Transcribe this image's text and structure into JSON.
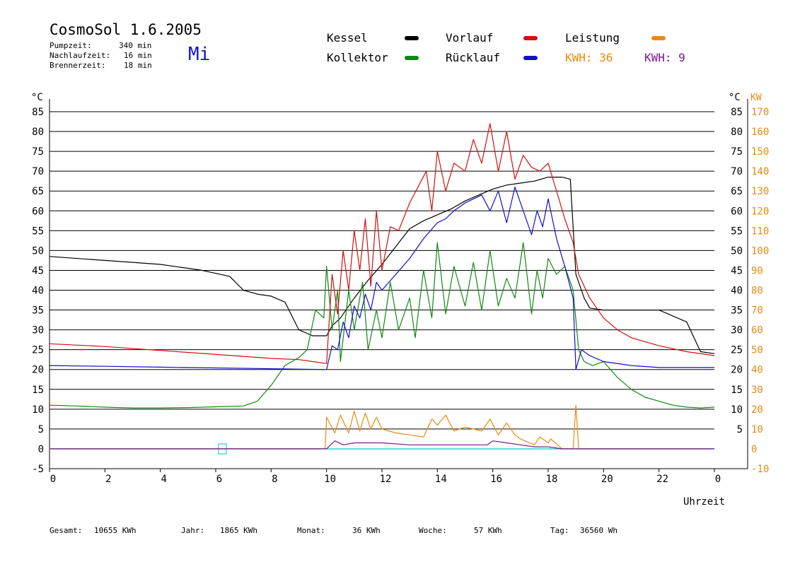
{
  "header": {
    "title": "CosmoSol 1.6.2005",
    "day": "Mi",
    "times": [
      {
        "label": "Pumpzeit:",
        "value": "340 min"
      },
      {
        "label": "Nachlaufzeit:",
        "value": "16 min"
      },
      {
        "label": "Brennerzeit:",
        "value": "18 min"
      }
    ]
  },
  "legend": {
    "kessel": "Kessel",
    "kollektor": "Kollektor",
    "vorlauf": "Vorlauf",
    "ruecklauf": "Rücklauf",
    "leistung": "Leistung",
    "kwh1": "KWH: 36",
    "kwh2": "KWH: 9"
  },
  "colors": {
    "kessel": "#000000",
    "kollektor": "#118811",
    "vorlauf": "#d01010",
    "ruecklauf": "#1010c8",
    "leistung": "#e88a10",
    "leistung2": "#7a1a8a",
    "zero": "#30d0d0"
  },
  "footer": [
    {
      "label": "Gesamt:",
      "value": "10655 KWh"
    },
    {
      "label": "Jahr:",
      "value": "1865 KWh"
    },
    {
      "label": "Monat:",
      "value": "36 KWh"
    },
    {
      "label": "Woche:",
      "value": "57 KWh"
    },
    {
      "label": "Tag:",
      "value": "36560 Wh"
    }
  ],
  "chart_data": {
    "type": "line",
    "title": "CosmoSol 1.6.2005",
    "xlabel": "Uhrzeit",
    "ylabel_left": "°C",
    "ylabel_right": "°C",
    "ylabel_right2": "KW",
    "xlim": [
      0,
      24
    ],
    "ylim": [
      -5,
      85
    ],
    "ylim_kw": [
      -10,
      170
    ],
    "grid": true,
    "x_ticks": [
      "0",
      "2",
      "4",
      "6",
      "8",
      "10",
      "12",
      "14",
      "16",
      "18",
      "20",
      "22",
      "0"
    ],
    "y_ticks_left": [
      "85",
      "80",
      "75",
      "70",
      "65",
      "60",
      "55",
      "50",
      "45",
      "40",
      "35",
      "30",
      "25",
      "20",
      "15",
      "10",
      "5",
      "0",
      "-5"
    ],
    "y_ticks_right": [
      "85",
      "80",
      "75",
      "70",
      "65",
      "60",
      "55",
      "50",
      "45",
      "40",
      "35",
      "30",
      "25",
      "20",
      "15",
      "10",
      "5"
    ],
    "y_ticks_kw": [
      "170",
      "160",
      "150",
      "140",
      "130",
      "120",
      "110",
      "100",
      "90",
      "80",
      "70",
      "60",
      "50",
      "40",
      "30",
      "20",
      "10",
      "0",
      "-10"
    ],
    "series": [
      {
        "name": "Kessel",
        "x": [
          0,
          2,
          4,
          5.5,
          6.5,
          7,
          7.5,
          8,
          8.5,
          9,
          9.5,
          10,
          10.2,
          10.5,
          11,
          11.5,
          12,
          12.5,
          13,
          13.5,
          14,
          14.5,
          15,
          15.5,
          16,
          16.5,
          17,
          17.5,
          18,
          18.5,
          18.8,
          19,
          19.3,
          19.5,
          20,
          21,
          22,
          23,
          23.5,
          24
        ],
        "y": [
          48.5,
          47.5,
          46.5,
          45,
          43.5,
          40,
          39,
          38.5,
          37,
          30,
          28.5,
          28.5,
          31,
          33,
          38,
          42.5,
          46.5,
          51,
          55.5,
          57.5,
          59,
          60.5,
          62.5,
          64,
          65.5,
          66.5,
          67,
          67.5,
          68.5,
          68.5,
          68,
          44,
          38,
          35.5,
          35,
          35,
          35,
          32,
          24.5,
          24
        ]
      },
      {
        "name": "Kollektor",
        "x": [
          0,
          1,
          2,
          3,
          4,
          5,
          6,
          7,
          7.5,
          8,
          8.5,
          9,
          9.3,
          9.6,
          9.9,
          10,
          10.2,
          10.4,
          10.5,
          10.8,
          11,
          11.3,
          11.5,
          11.8,
          12,
          12.3,
          12.6,
          13,
          13.2,
          13.5,
          13.8,
          14,
          14.3,
          14.6,
          15,
          15.3,
          15.6,
          15.9,
          16.2,
          16.5,
          16.8,
          17.1,
          17.4,
          17.6,
          17.8,
          18,
          18.3,
          18.6,
          18.9,
          19.1,
          19.3,
          19.6,
          20,
          20.5,
          21,
          21.5,
          22,
          22.5,
          23,
          23.5,
          24
        ],
        "y": [
          11,
          10.8,
          10.5,
          10.3,
          10.3,
          10.4,
          10.6,
          10.8,
          12,
          16,
          21,
          23,
          25,
          35,
          33,
          46,
          30,
          40,
          22,
          40,
          30,
          42,
          25,
          35,
          28,
          42,
          30,
          38,
          28,
          45,
          33,
          52,
          34,
          46,
          36,
          47,
          35,
          50,
          36,
          43,
          38,
          52,
          34,
          45,
          38,
          48,
          44,
          46,
          40,
          25,
          22,
          21,
          22,
          18,
          15,
          13,
          12,
          11,
          10.5,
          10.3,
          10.5
        ]
      },
      {
        "name": "Vorlauf",
        "x": [
          0,
          2,
          4,
          6,
          8,
          9,
          9.5,
          10,
          10.2,
          10.4,
          10.6,
          10.8,
          11,
          11.2,
          11.4,
          11.6,
          11.8,
          12,
          12.3,
          12.6,
          13,
          13.3,
          13.6,
          13.8,
          14,
          14.3,
          14.6,
          15,
          15.3,
          15.6,
          15.9,
          16.2,
          16.5,
          16.8,
          17.1,
          17.4,
          17.7,
          18,
          18.3,
          18.6,
          18.9,
          19.1,
          19.5,
          20,
          20.5,
          21,
          22,
          23,
          24
        ],
        "y": [
          26.5,
          25.8,
          24.8,
          23.8,
          22.8,
          22.5,
          22,
          21.5,
          44,
          34,
          50,
          40,
          55,
          45,
          58,
          41,
          60,
          45,
          56,
          55,
          62,
          66,
          70,
          60,
          75,
          65,
          72,
          70,
          78,
          72,
          82,
          70,
          80,
          68,
          74,
          71,
          70,
          72,
          65,
          58,
          52,
          44,
          38,
          33,
          30,
          28,
          26,
          24.5,
          23.5
        ]
      },
      {
        "name": "Rücklauf",
        "x": [
          0,
          2,
          4,
          6,
          8,
          9,
          9.9,
          10,
          10.2,
          10.4,
          10.6,
          10.8,
          11,
          11.2,
          11.4,
          11.6,
          11.8,
          12,
          12.5,
          13,
          13.5,
          14,
          14.3,
          14.6,
          15,
          15.3,
          15.6,
          15.9,
          16.2,
          16.5,
          16.8,
          17.1,
          17.4,
          17.6,
          17.8,
          18,
          18.3,
          18.6,
          18.9,
          19,
          19.2,
          19.5,
          20,
          21,
          22,
          23,
          24
        ],
        "y": [
          21,
          20.8,
          20.6,
          20.4,
          20.2,
          20.1,
          20,
          20,
          26,
          25,
          32,
          28,
          36,
          33,
          39,
          35,
          42,
          40,
          44,
          48,
          53,
          57,
          58,
          60,
          62,
          63,
          64,
          60,
          65,
          57,
          66,
          60,
          54,
          60,
          56,
          63,
          53,
          46,
          38,
          20,
          25,
          23.5,
          22,
          21,
          20.5,
          20.5,
          20.5
        ]
      },
      {
        "name": "Leistung",
        "axis": "kw",
        "x": [
          0,
          9.95,
          10,
          10.3,
          10.5,
          10.8,
          11,
          11.2,
          11.4,
          11.6,
          11.8,
          12,
          12.5,
          13,
          13.5,
          13.8,
          14,
          14.3,
          14.6,
          15,
          15.3,
          15.6,
          15.9,
          16.2,
          16.5,
          16.8,
          17,
          17.5,
          17.7,
          18,
          18.1,
          18.5,
          18.9,
          19,
          19.1,
          24
        ],
        "y": [
          0,
          0,
          16,
          8,
          17,
          8,
          19,
          9,
          18,
          10,
          16,
          10,
          8,
          7,
          6,
          15,
          12,
          17,
          9,
          11,
          10,
          9,
          15,
          7,
          13,
          7,
          5,
          2,
          6,
          3,
          5,
          0,
          0,
          22,
          0,
          0
        ]
      },
      {
        "name": "Leistung 2",
        "axis": "kw",
        "x": [
          0,
          10,
          10.3,
          10.6,
          11,
          12,
          13,
          14,
          15,
          15.8,
          16,
          16.5,
          17,
          17.5,
          18,
          18.5,
          24
        ],
        "y": [
          0,
          0,
          4,
          2,
          3,
          3,
          2,
          2,
          2,
          2,
          4,
          3,
          2,
          1,
          1,
          0,
          0
        ]
      }
    ]
  }
}
